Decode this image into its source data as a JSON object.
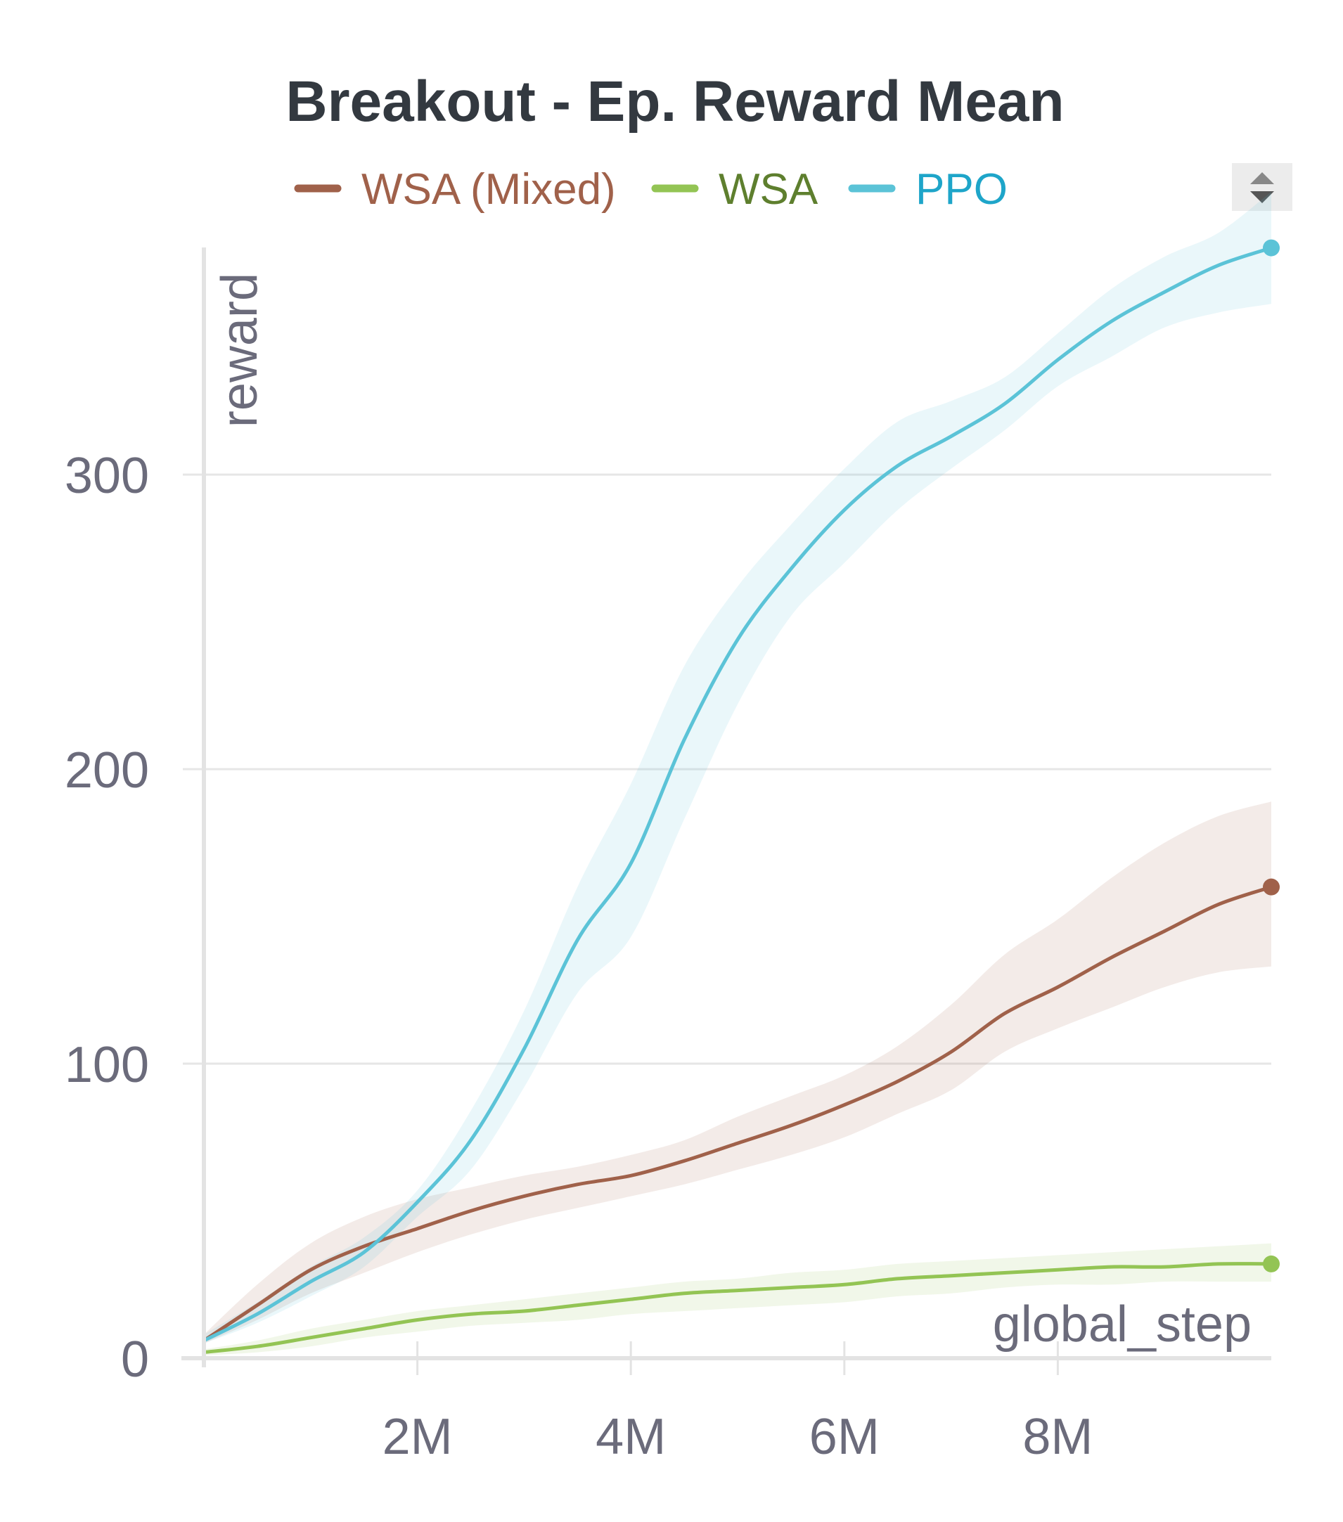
{
  "chart_data": {
    "type": "line",
    "title": "Breakout - Ep. Reward Mean",
    "xlabel": "global_step",
    "ylabel": "reward",
    "xlim": [
      0,
      10000000
    ],
    "ylim": [
      0,
      380
    ],
    "x_ticks": [
      {
        "value": 2000000,
        "label": "2M"
      },
      {
        "value": 4000000,
        "label": "4M"
      },
      {
        "value": 6000000,
        "label": "6M"
      },
      {
        "value": 8000000,
        "label": "8M"
      }
    ],
    "y_ticks": [
      {
        "value": 0,
        "label": "0"
      },
      {
        "value": 100,
        "label": "100"
      },
      {
        "value": 200,
        "label": "200"
      },
      {
        "value": 300,
        "label": "300"
      }
    ],
    "grid": "horizontal",
    "legend_position": "top",
    "x": [
      0,
      500000,
      1000000,
      1500000,
      2000000,
      2500000,
      3000000,
      3500000,
      4000000,
      4500000,
      5000000,
      5500000,
      6000000,
      6500000,
      7000000,
      7500000,
      8000000,
      8500000,
      9000000,
      9500000,
      10000000
    ],
    "series": [
      {
        "name": "WSA (Mixed)",
        "color": "#a0614a",
        "values": [
          6,
          18,
          30,
          38,
          44,
          50,
          55,
          59,
          62,
          67,
          73,
          79,
          86,
          94,
          104,
          117,
          126,
          136,
          145,
          154,
          160
        ],
        "lower": [
          5,
          13,
          22,
          29,
          36,
          42,
          47,
          51,
          55,
          59,
          64,
          69,
          75,
          83,
          91,
          104,
          112,
          119,
          126,
          131,
          133
        ],
        "upper": [
          8,
          25,
          39,
          48,
          54,
          58,
          62,
          65,
          69,
          74,
          82,
          89,
          96,
          106,
          120,
          137,
          149,
          163,
          175,
          184,
          189
        ]
      },
      {
        "name": "WSA",
        "color": "#93c454",
        "values": [
          2,
          4,
          7,
          10,
          13,
          15,
          16,
          18,
          20,
          22,
          23,
          24,
          25,
          27,
          28,
          29,
          30,
          31,
          31,
          32,
          32
        ],
        "lower": [
          1,
          2,
          4,
          7,
          9,
          11,
          12,
          13,
          15,
          16,
          17,
          18,
          19,
          21,
          22,
          24,
          25,
          25,
          26,
          26,
          26
        ],
        "upper": [
          3,
          6,
          10,
          13,
          16,
          18,
          20,
          22,
          24,
          26,
          27,
          29,
          30,
          32,
          33,
          34,
          35,
          36,
          37,
          38,
          39
        ]
      },
      {
        "name": "PPO",
        "color": "#5bc3d7",
        "values": [
          6,
          15,
          26,
          36,
          53,
          74,
          105,
          142,
          168,
          210,
          244,
          268,
          288,
          303,
          313,
          324,
          339,
          352,
          362,
          371,
          377
        ],
        "lower": [
          5,
          12,
          21,
          31,
          48,
          64,
          92,
          124,
          143,
          183,
          222,
          252,
          270,
          288,
          302,
          315,
          330,
          340,
          350,
          355,
          358
        ],
        "upper": [
          8,
          19,
          31,
          41,
          57,
          84,
          118,
          160,
          195,
          235,
          262,
          283,
          302,
          318,
          325,
          333,
          348,
          363,
          374,
          382,
          396
        ]
      }
    ]
  }
}
